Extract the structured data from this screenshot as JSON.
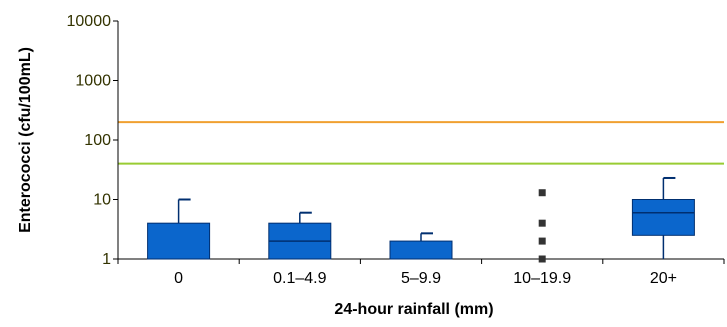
{
  "chart_data": {
    "type": "box",
    "title": "",
    "xlabel": "24-hour rainfall (mm)",
    "ylabel": "Enterococci (cfu/100mL)",
    "yscale": "log",
    "ylim": [
      1,
      10000
    ],
    "yticks": [
      "1",
      "10",
      "100",
      "1000",
      "10000"
    ],
    "categories": [
      "0",
      "0.1–4.9",
      "5–9.9",
      "10–19.9",
      "20+"
    ],
    "boxes": [
      {
        "category": "0",
        "lower": 1,
        "q1": 1,
        "median": 1,
        "q3": 4,
        "upper": 10
      },
      {
        "category": "0.1–4.9",
        "lower": 1,
        "q1": 1,
        "median": 2,
        "q3": 4,
        "upper": 6
      },
      {
        "category": "5–9.9",
        "lower": 1,
        "q1": 1,
        "median": 1,
        "q3": 2,
        "upper": 2.7
      },
      {
        "category": "20+",
        "lower": 1,
        "q1": 2.5,
        "median": 6,
        "q3": 10,
        "upper": 23
      }
    ],
    "points": [
      {
        "category": "10–19.9",
        "values": [
          1,
          2,
          4,
          13
        ]
      }
    ],
    "reference_lines": [
      {
        "value": 200,
        "color": "#f0a030"
      },
      {
        "value": 40,
        "color": "#99cc33"
      }
    ],
    "colors": {
      "box_fill": "#0b66cc",
      "box_stroke": "#002f70",
      "point": "#333333",
      "axis": "#000000"
    },
    "grid": false,
    "legend": "none"
  }
}
